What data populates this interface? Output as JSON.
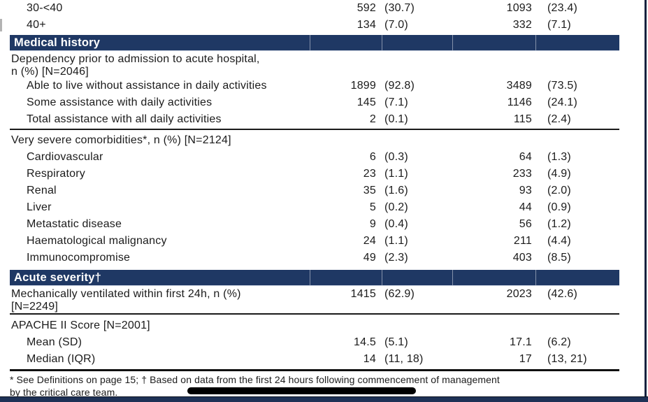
{
  "colors": {
    "band_background": "#1f3864",
    "band_text": "#ffffff",
    "bottom_strip": "#1e3156",
    "right_border": "#16233f",
    "redaction_bar": "#000000",
    "rule": "#1a1a1a"
  },
  "table": {
    "rows": [
      {
        "label": "30-<40",
        "n1": "592",
        "p1": "(30.7)",
        "n2": "1093",
        "p2": "(23.4)"
      },
      {
        "label": "40+",
        "n1": "134",
        "p1": "(7.0)",
        "n2": "332",
        "p2": "(7.1)"
      },
      {
        "label": "Medical history"
      },
      {
        "label_line1": "Dependency prior to admission to acute hospital,",
        "label_line2": "n (%) [N=2046]"
      },
      {
        "label": "Able to live without assistance in daily activities",
        "n1": "1899",
        "p1": "(92.8)",
        "n2": "3489",
        "p2": "(73.5)"
      },
      {
        "label": "Some assistance with daily activities",
        "n1": "145",
        "p1": "(7.1)",
        "n2": "1146",
        "p2": "(24.1)"
      },
      {
        "label": "Total assistance with all daily activities",
        "n1": "2",
        "p1": "(0.1)",
        "n2": "115",
        "p2": "(2.4)"
      },
      {
        "label": "Very severe comorbidities*, n (%) [N=2124]"
      },
      {
        "label": "Cardiovascular",
        "n1": "6",
        "p1": "(0.3)",
        "n2": "64",
        "p2": "(1.3)"
      },
      {
        "label": "Respiratory",
        "n1": "23",
        "p1": "(1.1)",
        "n2": "233",
        "p2": "(4.9)"
      },
      {
        "label": "Renal",
        "n1": "35",
        "p1": "(1.6)",
        "n2": "93",
        "p2": "(2.0)"
      },
      {
        "label": "Liver",
        "n1": "5",
        "p1": "(0.2)",
        "n2": "44",
        "p2": "(0.9)"
      },
      {
        "label": "Metastatic disease",
        "n1": "9",
        "p1": "(0.4)",
        "n2": "56",
        "p2": "(1.2)"
      },
      {
        "label": "Haematological malignancy",
        "n1": "24",
        "p1": "(1.1)",
        "n2": "211",
        "p2": "(4.4)"
      },
      {
        "label": "Immunocompromise",
        "n1": "49",
        "p1": "(2.3)",
        "n2": "403",
        "p2": "(8.5)"
      },
      {
        "label": "Acute severity†"
      },
      {
        "label_line1": "Mechanically ventilated within first 24h, n (%)",
        "label_line2": "[N=2249]",
        "n1": "1415",
        "p1": "(62.9)",
        "n2": "2023",
        "p2": "(42.6)"
      },
      {
        "label": "APACHE II Score [N=2001]"
      },
      {
        "label": "Mean (SD)",
        "n1": "14.5",
        "p1": "(5.1)",
        "n2": "17.1",
        "p2": "(6.2)"
      },
      {
        "label": "Median (IQR)",
        "n1": "14",
        "p1": "(11, 18)",
        "n2": "17",
        "p2": "(13, 21)"
      }
    ]
  },
  "footnote": {
    "line1": "* See Definitions on page 15; † Based on data from the first 24 hours following commencement of management",
    "line2": "by the critical care team."
  }
}
